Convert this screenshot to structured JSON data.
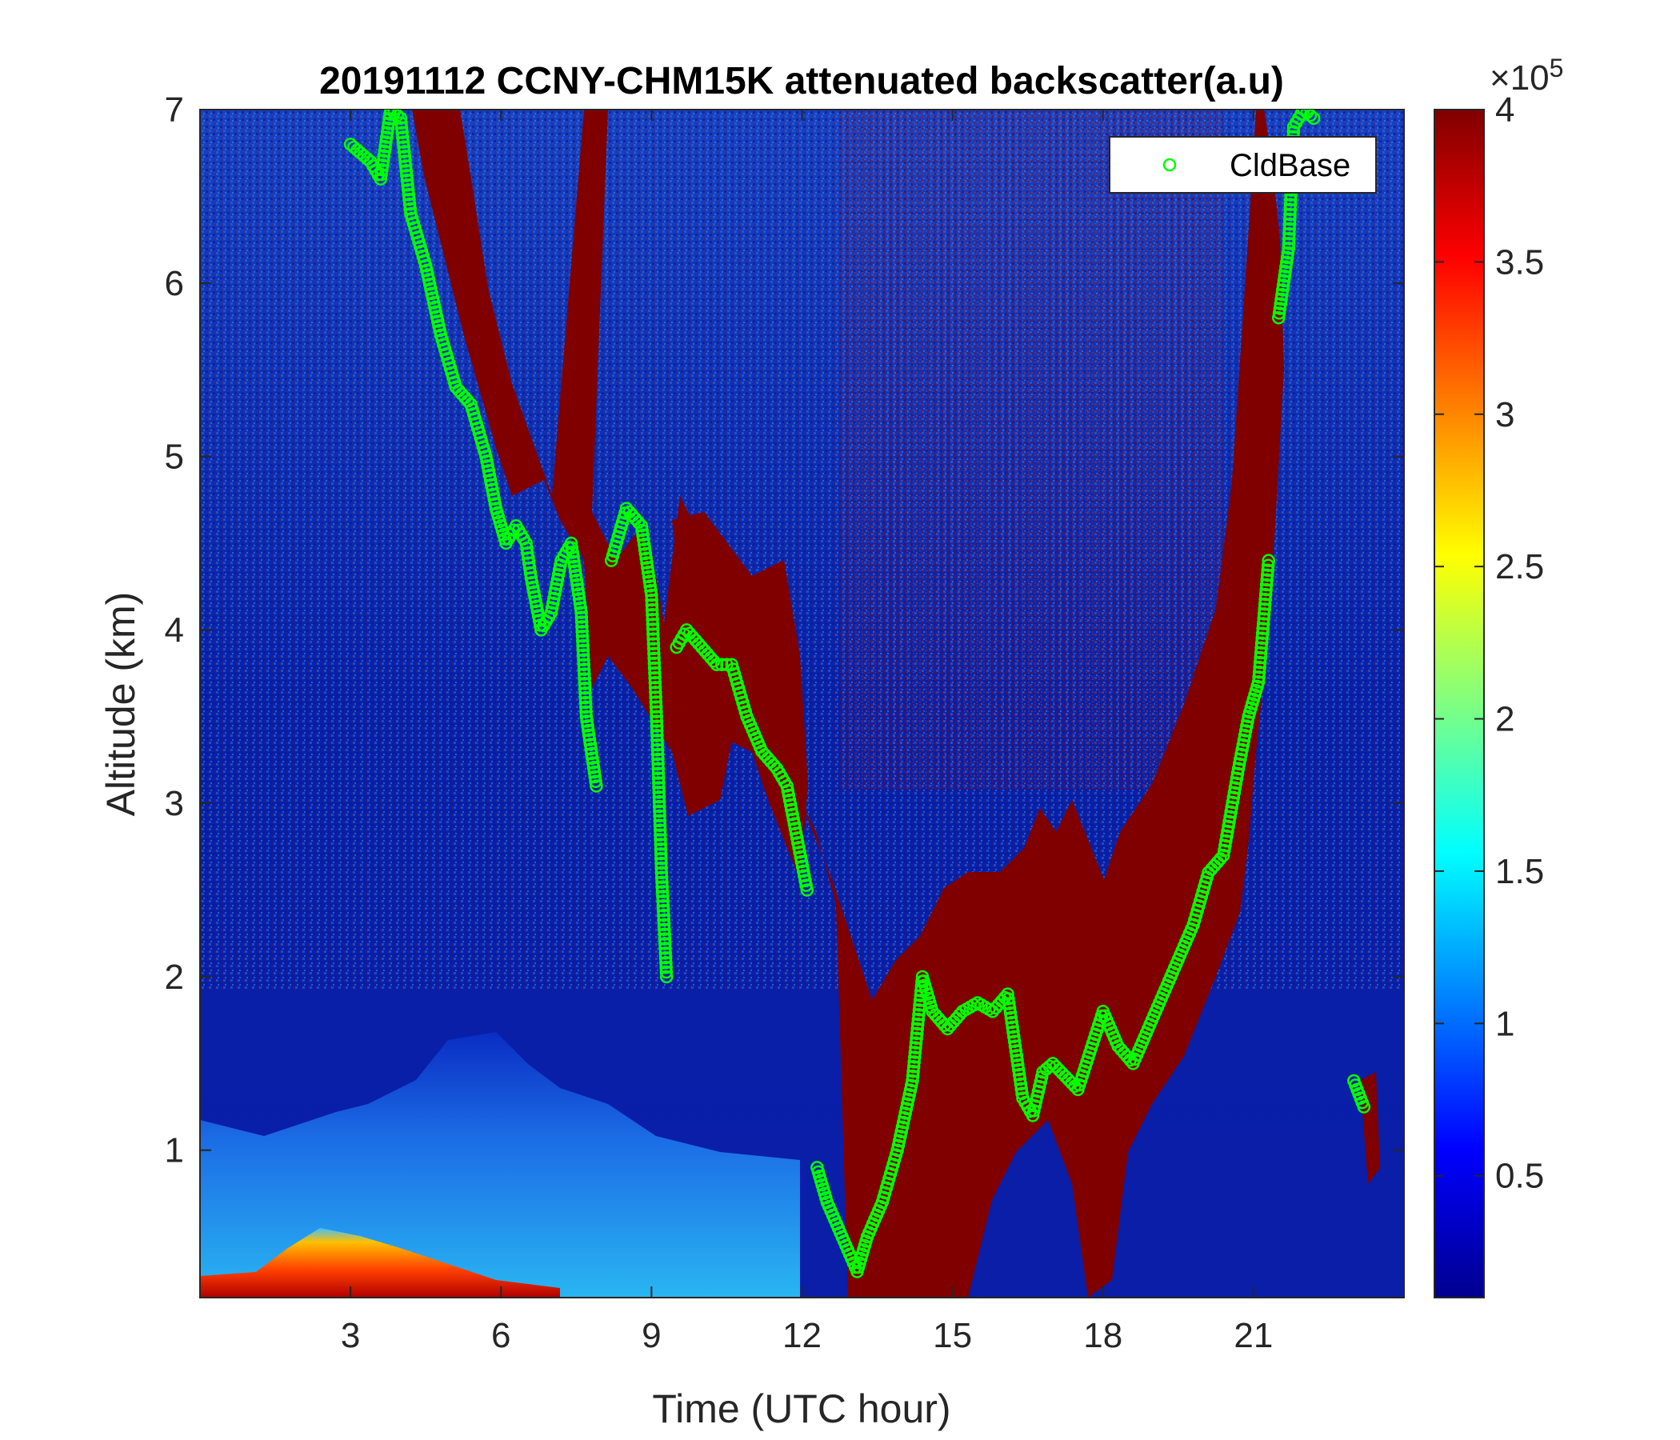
{
  "chart_data": {
    "type": "heatmap",
    "title": "20191112 CCNY-CHM15K attenuated backscatter(a.u)",
    "xlabel": "Time (UTC hour)",
    "ylabel": "Altitude (km)",
    "xlim": [
      0,
      24
    ],
    "ylim": [
      0.15,
      7
    ],
    "x_ticks": [
      3,
      6,
      9,
      12,
      15,
      18,
      21
    ],
    "y_ticks": [
      1,
      2,
      3,
      4,
      5,
      6,
      7
    ],
    "colorbar": {
      "colormap": "jet",
      "range": [
        0.1,
        4
      ],
      "ticks": [
        0.5,
        1,
        1.5,
        2,
        2.5,
        3,
        3.5,
        4
      ],
      "exponent_label": "×10",
      "exponent_power": "5"
    },
    "legend": {
      "placement": "top-right",
      "entries": [
        "CldBase"
      ],
      "marker": "open-circle",
      "color": "#00ff00"
    },
    "series": [
      {
        "name": "CldBase",
        "x": [
          3.0,
          3.2,
          3.4,
          3.6,
          3.8,
          4.0,
          4.2,
          4.5,
          4.8,
          5.1,
          5.4,
          5.7,
          5.9,
          6.1,
          6.3,
          6.5,
          6.6,
          6.8,
          7.0,
          7.2,
          7.4,
          7.6,
          7.7,
          7.9,
          8.2,
          8.5,
          8.8,
          9.0,
          9.1,
          9.2,
          9.3,
          9.5,
          9.7,
          10.0,
          10.3,
          10.6,
          10.9,
          11.2,
          11.5,
          11.7,
          11.9,
          12.1,
          12.3,
          12.5,
          12.8,
          13.1,
          13.3,
          13.6,
          13.9,
          14.2,
          14.4,
          14.6,
          14.9,
          15.2,
          15.5,
          15.8,
          16.1,
          16.4,
          16.6,
          16.8,
          17.0,
          17.5,
          18.0,
          18.3,
          18.6,
          18.9,
          19.2,
          19.5,
          19.8,
          20.1,
          20.4,
          20.7,
          20.9,
          21.1,
          21.3,
          21.5,
          21.7,
          21.8,
          22.0,
          22.2,
          23.0,
          23.2
        ],
        "y": [
          6.8,
          6.75,
          6.7,
          6.6,
          7.0,
          6.95,
          6.4,
          6.1,
          5.7,
          5.4,
          5.3,
          5.0,
          4.7,
          4.5,
          4.6,
          4.5,
          4.3,
          4.0,
          4.1,
          4.4,
          4.5,
          4.1,
          3.5,
          3.1,
          4.4,
          4.7,
          4.6,
          4.2,
          3.5,
          2.6,
          2.0,
          3.9,
          4.0,
          3.9,
          3.8,
          3.8,
          3.5,
          3.3,
          3.2,
          3.1,
          2.8,
          2.5,
          0.9,
          0.7,
          0.5,
          0.3,
          0.5,
          0.7,
          1.0,
          1.4,
          2.0,
          1.8,
          1.7,
          1.8,
          1.85,
          1.8,
          1.9,
          1.3,
          1.2,
          1.45,
          1.5,
          1.35,
          1.8,
          1.6,
          1.5,
          1.7,
          1.9,
          2.1,
          2.3,
          2.6,
          2.7,
          3.2,
          3.5,
          3.7,
          4.4,
          5.8,
          6.2,
          6.9,
          7.0,
          6.95,
          1.4,
          1.25
        ]
      }
    ]
  }
}
